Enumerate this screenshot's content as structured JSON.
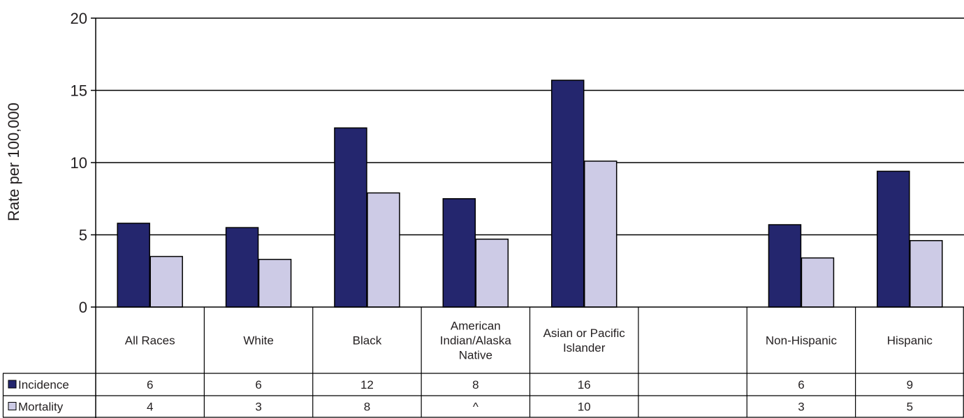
{
  "chart_data": {
    "type": "bar",
    "ylabel": "Rate per 100,000",
    "ylim": [
      0,
      20
    ],
    "yticks": [
      0,
      5,
      10,
      15,
      20
    ],
    "grid": true,
    "legend": "table-left",
    "categories": [
      [
        "All Races"
      ],
      [
        "White"
      ],
      [
        "Black"
      ],
      [
        "American",
        "Indian/Alaska",
        "Native"
      ],
      [
        "Asian or Pacific",
        "Islander"
      ],
      [
        ""
      ],
      [
        "Non-Hispanic"
      ],
      [
        "Hispanic"
      ]
    ],
    "series": [
      {
        "name": "Incidence",
        "color": "#24266e",
        "values": [
          5.8,
          5.5,
          12.4,
          7.5,
          15.7,
          null,
          5.7,
          9.4
        ],
        "table": [
          "6",
          "6",
          "12",
          "8",
          "16",
          "",
          "6",
          "9"
        ]
      },
      {
        "name": "Mortality",
        "color": "#cdcbe6",
        "values": [
          3.5,
          3.3,
          7.9,
          4.7,
          10.1,
          null,
          3.4,
          4.6
        ],
        "table": [
          "4",
          "3",
          "8",
          "^",
          "10",
          "",
          "3",
          "5"
        ]
      }
    ]
  }
}
